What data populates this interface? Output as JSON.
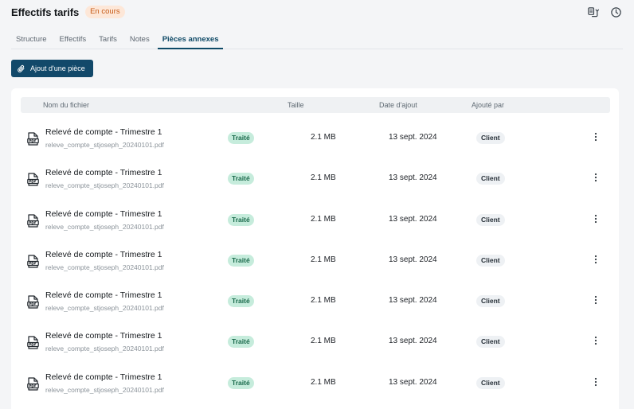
{
  "header": {
    "title": "Effectifs tarifs",
    "status": "En cours",
    "actions": [
      {
        "icon": "document-swap-icon"
      },
      {
        "icon": "history-clock-icon"
      }
    ]
  },
  "tabs": [
    {
      "label": "Structure",
      "active": false
    },
    {
      "label": "Effectifs",
      "active": false
    },
    {
      "label": "Tarifs",
      "active": false
    },
    {
      "label": "Notes",
      "active": false
    },
    {
      "label": "Pièces annexes",
      "active": true
    }
  ],
  "add_button": {
    "label": "Ajout d'une pièce",
    "icon": "paperclip-icon"
  },
  "table": {
    "columns": [
      "Nom du fichier",
      "Taille",
      "Date d'ajout",
      "Ajouté par"
    ],
    "rows": [
      {
        "name": "Relevé de compte - Trimestre 1",
        "file": "releve_compte_stjoseph_20240101.pdf",
        "status": "Traité",
        "size": "2.1 MB",
        "date": "13 sept. 2024",
        "added_by": "Client"
      },
      {
        "name": "Relevé de compte - Trimestre 1",
        "file": "releve_compte_stjoseph_20240101.pdf",
        "status": "Traité",
        "size": "2.1 MB",
        "date": "13 sept. 2024",
        "added_by": "Client"
      },
      {
        "name": "Relevé de compte - Trimestre 1",
        "file": "releve_compte_stjoseph_20240101.pdf",
        "status": "Traité",
        "size": "2.1 MB",
        "date": "13 sept. 2024",
        "added_by": "Client"
      },
      {
        "name": "Relevé de compte - Trimestre 1",
        "file": "releve_compte_stjoseph_20240101.pdf",
        "status": "Traité",
        "size": "2.1 MB",
        "date": "13 sept. 2024",
        "added_by": "Client"
      },
      {
        "name": "Relevé de compte - Trimestre 1",
        "file": "releve_compte_stjoseph_20240101.pdf",
        "status": "Traité",
        "size": "2.1 MB",
        "date": "13 sept. 2024",
        "added_by": "Client"
      },
      {
        "name": "Relevé de compte - Trimestre 1",
        "file": "releve_compte_stjoseph_20240101.pdf",
        "status": "Traité",
        "size": "2.1 MB",
        "date": "13 sept. 2024",
        "added_by": "Client"
      },
      {
        "name": "Relevé de compte - Trimestre 1",
        "file": "releve_compte_stjoseph_20240101.pdf",
        "status": "Traité",
        "size": "2.1 MB",
        "date": "13 sept. 2024",
        "added_by": "Client"
      }
    ]
  },
  "colors": {
    "accent": "#12496a",
    "status_in_progress_bg": "#fde7d8",
    "status_in_progress_fg": "#c65a16",
    "processed_bg": "#c6ecdc",
    "processed_fg": "#1b6a4c"
  }
}
